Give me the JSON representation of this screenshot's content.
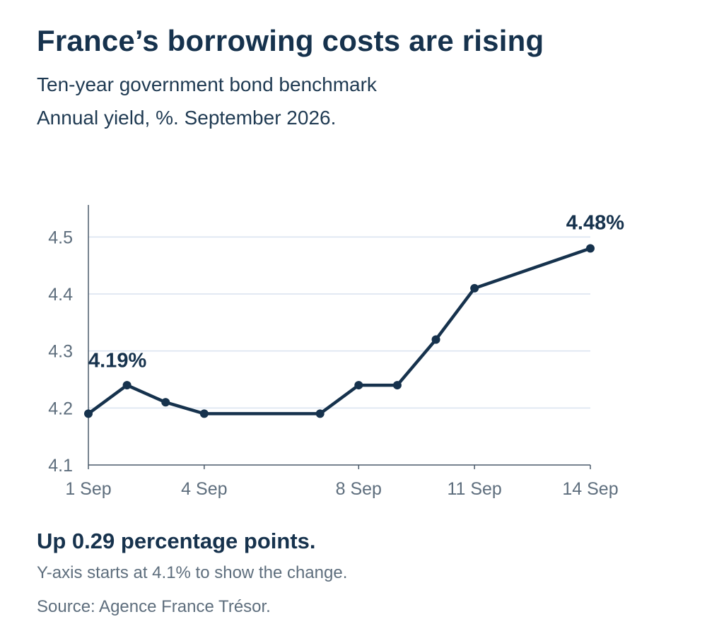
{
  "header": {
    "title": "France’s borrowing costs are rising",
    "subtitle": "Ten-year government bond benchmark",
    "subtitle2": "Annual yield, %. September 2026."
  },
  "footer": {
    "summary": "Up 0.29 percentage points.",
    "note": "Y-axis starts at 4.1% to show the change.",
    "source": "Source: Agence France Trésor."
  },
  "colors": {
    "line": "#16324d",
    "grid": "#d9e2ef",
    "axis": "#4a5a6a",
    "tick_text": "#5e6e7d"
  },
  "chart_data": {
    "type": "line",
    "title": "France’s borrowing costs are rising",
    "xlabel": "",
    "ylabel": "",
    "x": [
      "1 Sep",
      "2 Sep",
      "3 Sep",
      "4 Sep",
      "7 Sep",
      "8 Sep",
      "9 Sep",
      "10 Sep",
      "11 Sep",
      "14 Sep"
    ],
    "x_day": [
      1,
      2,
      3,
      4,
      7,
      8,
      9,
      10,
      11,
      14
    ],
    "series": [
      {
        "name": "",
        "values": [
          4.19,
          4.24,
          4.21,
          4.19,
          4.19,
          4.24,
          4.24,
          4.32,
          4.41,
          4.48
        ]
      }
    ],
    "x_ticks": [
      {
        "day": 1,
        "label": "1 Sep"
      },
      {
        "day": 4,
        "label": "4 Sep"
      },
      {
        "day": 8,
        "label": "8 Sep"
      },
      {
        "day": 11,
        "label": "11 Sep"
      },
      {
        "day": 14,
        "label": "14 Sep"
      }
    ],
    "y_ticks": [
      4.1,
      4.2,
      4.3,
      4.4,
      4.5
    ],
    "y_tick_labels": [
      "4.1",
      "4.2",
      "4.3",
      "4.4",
      "4.5"
    ],
    "ylim": [
      4.1,
      4.55
    ],
    "xlim": [
      1,
      14
    ],
    "grid": true,
    "legend": "none",
    "annotations": [
      {
        "day": 1,
        "value": 4.19,
        "text": "4.19%"
      },
      {
        "day": 14,
        "value": 4.48,
        "text": "4.48%"
      }
    ]
  }
}
